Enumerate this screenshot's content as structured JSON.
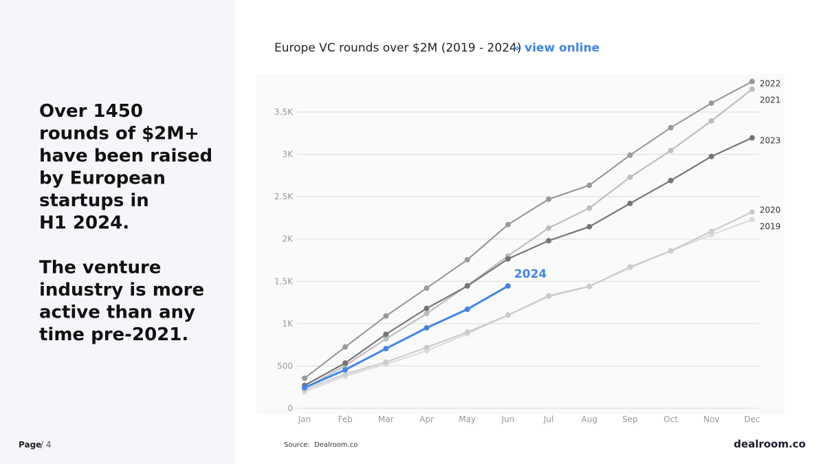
{
  "headline": {
    "lines": [
      "Over 1450",
      "rounds of $2M+",
      "have been raised",
      "by European",
      "startups in",
      "H1 2024.",
      "",
      "The venture",
      "industry is more",
      "active than any",
      "time pre-2021."
    ]
  },
  "footer": {
    "page_label": "Page",
    "page_number": "/ 4",
    "source_label": "Source:",
    "source": "Dealroom.co",
    "logo": "dealroom.co"
  },
  "link": {
    "prefix": "»",
    "text": "view online"
  },
  "chart_data": {
    "type": "line",
    "title": "Europe VC rounds over $2M (2019 - 2024)",
    "categories": [
      "Jan",
      "Feb",
      "Mar",
      "Apr",
      "May",
      "Jun",
      "Jul",
      "Aug",
      "Sep",
      "Oct",
      "Nov",
      "Dec"
    ],
    "series": [
      {
        "name": "2019",
        "color": "#dcdcdc",
        "values": [
          195,
          380,
          520,
          680,
          880,
          1100,
          1320,
          1440,
          1660,
          1860,
          2050,
          2230
        ]
      },
      {
        "name": "2020",
        "color": "#cccccc",
        "values": [
          220,
          405,
          545,
          720,
          900,
          1100,
          1330,
          1440,
          1670,
          1860,
          2090,
          2320
        ]
      },
      {
        "name": "2021",
        "color": "#bdbdbd",
        "values": [
          235,
          505,
          820,
          1120,
          1450,
          1800,
          2130,
          2365,
          2730,
          3045,
          3395,
          3770
        ]
      },
      {
        "name": "2022",
        "color": "#9a9a9a",
        "values": [
          355,
          725,
          1090,
          1420,
          1755,
          2170,
          2470,
          2635,
          2990,
          3315,
          3605,
          3860
        ]
      },
      {
        "name": "2023",
        "color": "#767676",
        "values": [
          270,
          535,
          875,
          1180,
          1445,
          1765,
          1980,
          2145,
          2420,
          2690,
          2975,
          3195
        ]
      },
      {
        "name": "2024",
        "color": "#4285e8",
        "values": [
          245,
          455,
          705,
          950,
          1170,
          1445,
          null,
          null,
          null,
          null,
          null,
          null
        ]
      }
    ],
    "ylim": [
      0,
      3930
    ],
    "yticks": [
      0,
      500,
      {
        "value": 1000,
        "label": "1K"
      },
      {
        "value": 1500,
        "label": "1.5K"
      },
      {
        "value": 2000,
        "label": "2K"
      },
      {
        "value": 2500,
        "label": "2.5K"
      },
      {
        "value": 3000,
        "label": "3K"
      },
      {
        "value": 3500,
        "label": "3.5K"
      }
    ],
    "grid": true
  }
}
